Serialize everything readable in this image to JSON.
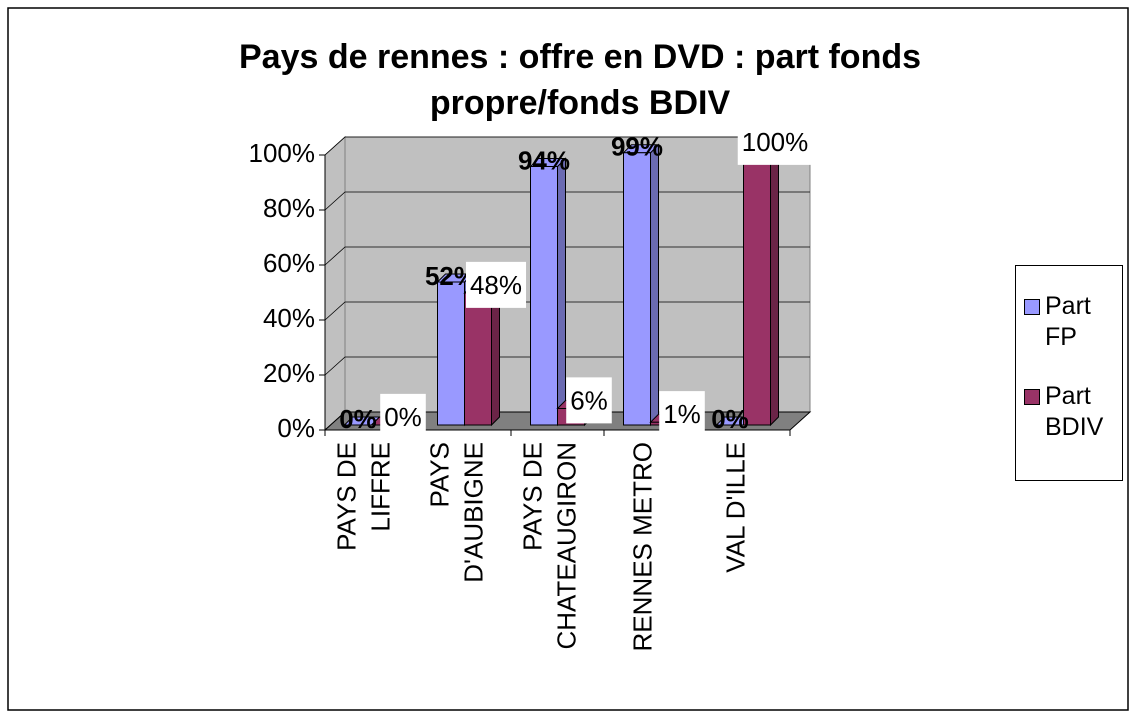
{
  "chart_data": {
    "type": "bar3d",
    "title": "Pays de rennes : offre en DVD : part fonds propre/fonds BDIV",
    "categories": [
      [
        "PAYS  DE",
        "LIFFRE"
      ],
      [
        "PAYS",
        "D'AUBIGNE"
      ],
      [
        "PAYS DE",
        "CHATEAUGIRON"
      ],
      [
        "RENNES METRO"
      ],
      [
        "VAL D'ILLE"
      ]
    ],
    "series": [
      {
        "name": "Part FP",
        "color": "#9999ff",
        "values": [
          0,
          52,
          94,
          99,
          0
        ],
        "value_labels": [
          "0%",
          "52%",
          "94%",
          "99%",
          "0%"
        ]
      },
      {
        "name": "Part BDIV",
        "color": "#993366",
        "values": [
          0,
          48,
          6,
          1,
          100
        ],
        "value_labels": [
          "0%",
          "48%",
          "6%",
          "1%",
          "100%"
        ]
      }
    ],
    "ylim": [
      0,
      100
    ],
    "yticks": [
      {
        "value": 0,
        "label": "0%"
      },
      {
        "value": 20,
        "label": "20%"
      },
      {
        "value": 40,
        "label": "40%"
      },
      {
        "value": 60,
        "label": "60%"
      },
      {
        "value": 80,
        "label": "80%"
      },
      {
        "value": 100,
        "label": "100%"
      }
    ],
    "grid": true,
    "legend": "right"
  }
}
